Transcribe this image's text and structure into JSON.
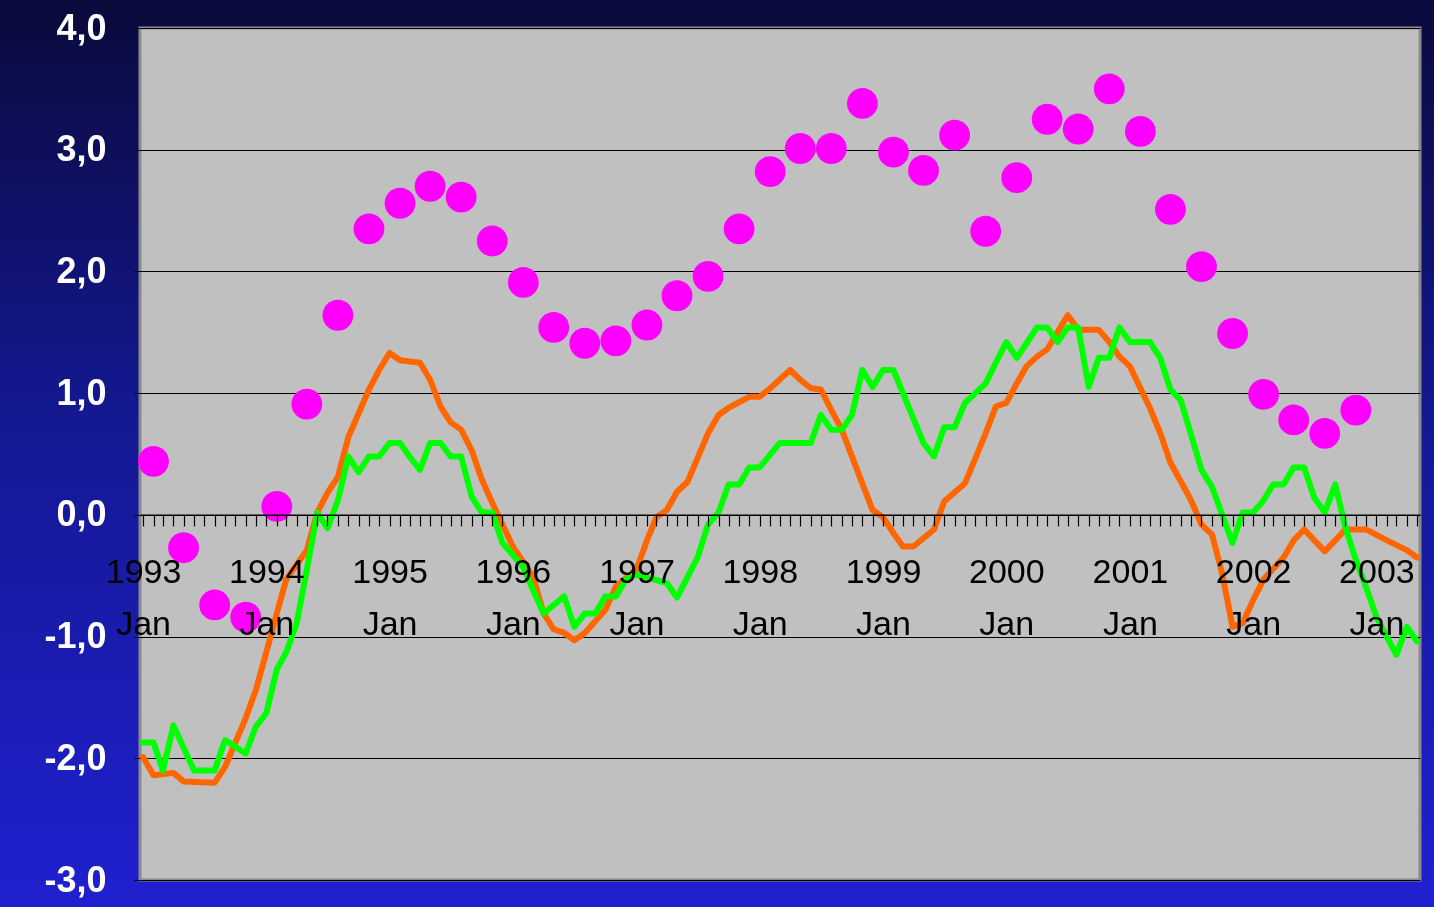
{
  "chart_data": {
    "type": "line",
    "grid": "y",
    "xlim": [
      "1992-12-23",
      "2003-05-10"
    ],
    "ylim": [
      -3,
      4
    ],
    "yticks": [
      {
        "value": -3,
        "label": "-3,0"
      },
      {
        "value": -2,
        "label": "-2,0"
      },
      {
        "value": -1,
        "label": "-1,0"
      },
      {
        "value": 0,
        "label": "0,0"
      },
      {
        "value": 1,
        "label": "1,0"
      },
      {
        "value": 2,
        "label": "2,0"
      },
      {
        "value": 3,
        "label": "3,0"
      },
      {
        "value": 4,
        "label": "4,0"
      }
    ],
    "xticks": [
      {
        "value": "1993-01",
        "label": "1993\nJan"
      },
      {
        "value": "1993-02",
        "label": null
      },
      {
        "value": "1993-03",
        "label": null
      },
      {
        "value": "1993-04",
        "label": null
      },
      {
        "value": "1993-05",
        "label": null
      },
      {
        "value": "1993-06",
        "label": null
      },
      {
        "value": "1993-07",
        "label": null
      },
      {
        "value": "1993-08",
        "label": null
      },
      {
        "value": "1993-09",
        "label": null
      },
      {
        "value": "1993-10",
        "label": null
      },
      {
        "value": "1993-11",
        "label": null
      },
      {
        "value": "1993-12",
        "label": null
      },
      {
        "value": "1994-01",
        "label": "1994\nJan"
      },
      {
        "value": "1994-02",
        "label": null
      },
      {
        "value": "1994-03",
        "label": null
      },
      {
        "value": "1994-04",
        "label": null
      },
      {
        "value": "1994-05",
        "label": null
      },
      {
        "value": "1994-06",
        "label": null
      },
      {
        "value": "1994-07",
        "label": null
      },
      {
        "value": "1994-08",
        "label": null
      },
      {
        "value": "1994-09",
        "label": null
      },
      {
        "value": "1994-10",
        "label": null
      },
      {
        "value": "1994-11",
        "label": null
      },
      {
        "value": "1994-12",
        "label": null
      },
      {
        "value": "1995-01",
        "label": "1995\nJan"
      },
      {
        "value": "1995-02",
        "label": null
      },
      {
        "value": "1995-03",
        "label": null
      },
      {
        "value": "1995-04",
        "label": null
      },
      {
        "value": "1995-05",
        "label": null
      },
      {
        "value": "1995-06",
        "label": null
      },
      {
        "value": "1995-07",
        "label": null
      },
      {
        "value": "1995-08",
        "label": null
      },
      {
        "value": "1995-09",
        "label": null
      },
      {
        "value": "1995-10",
        "label": null
      },
      {
        "value": "1995-11",
        "label": null
      },
      {
        "value": "1995-12",
        "label": null
      },
      {
        "value": "1996-01",
        "label": "1996\nJan"
      },
      {
        "value": "1996-02",
        "label": null
      },
      {
        "value": "1996-03",
        "label": null
      },
      {
        "value": "1996-04",
        "label": null
      },
      {
        "value": "1996-05",
        "label": null
      },
      {
        "value": "1996-06",
        "label": null
      },
      {
        "value": "1996-07",
        "label": null
      },
      {
        "value": "1996-08",
        "label": null
      },
      {
        "value": "1996-09",
        "label": null
      },
      {
        "value": "1996-10",
        "label": null
      },
      {
        "value": "1996-11",
        "label": null
      },
      {
        "value": "1996-12",
        "label": null
      },
      {
        "value": "1997-01",
        "label": "1997\nJan"
      },
      {
        "value": "1997-02",
        "label": null
      },
      {
        "value": "1997-03",
        "label": null
      },
      {
        "value": "1997-04",
        "label": null
      },
      {
        "value": "1997-05",
        "label": null
      },
      {
        "value": "1997-06",
        "label": null
      },
      {
        "value": "1997-07",
        "label": null
      },
      {
        "value": "1997-08",
        "label": null
      },
      {
        "value": "1997-09",
        "label": null
      },
      {
        "value": "1997-10",
        "label": null
      },
      {
        "value": "1997-11",
        "label": null
      },
      {
        "value": "1997-12",
        "label": null
      },
      {
        "value": "1998-01",
        "label": "1998\nJan"
      },
      {
        "value": "1998-02",
        "label": null
      },
      {
        "value": "1998-03",
        "label": null
      },
      {
        "value": "1998-04",
        "label": null
      },
      {
        "value": "1998-05",
        "label": null
      },
      {
        "value": "1998-06",
        "label": null
      },
      {
        "value": "1998-07",
        "label": null
      },
      {
        "value": "1998-08",
        "label": null
      },
      {
        "value": "1998-09",
        "label": null
      },
      {
        "value": "1998-10",
        "label": null
      },
      {
        "value": "1998-11",
        "label": null
      },
      {
        "value": "1998-12",
        "label": null
      },
      {
        "value": "1999-01",
        "label": "1999\nJan"
      },
      {
        "value": "1999-02",
        "label": null
      },
      {
        "value": "1999-03",
        "label": null
      },
      {
        "value": "1999-04",
        "label": null
      },
      {
        "value": "1999-05",
        "label": null
      },
      {
        "value": "1999-06",
        "label": null
      },
      {
        "value": "1999-07",
        "label": null
      },
      {
        "value": "1999-08",
        "label": null
      },
      {
        "value": "1999-09",
        "label": null
      },
      {
        "value": "1999-10",
        "label": null
      },
      {
        "value": "1999-11",
        "label": null
      },
      {
        "value": "1999-12",
        "label": null
      },
      {
        "value": "2000-01",
        "label": "2000\nJan"
      },
      {
        "value": "2000-02",
        "label": null
      },
      {
        "value": "2000-03",
        "label": null
      },
      {
        "value": "2000-04",
        "label": null
      },
      {
        "value": "2000-05",
        "label": null
      },
      {
        "value": "2000-06",
        "label": null
      },
      {
        "value": "2000-07",
        "label": null
      },
      {
        "value": "2000-08",
        "label": null
      },
      {
        "value": "2000-09",
        "label": null
      },
      {
        "value": "2000-10",
        "label": null
      },
      {
        "value": "2000-11",
        "label": null
      },
      {
        "value": "2000-12",
        "label": null
      },
      {
        "value": "2001-01",
        "label": "2001\nJan"
      },
      {
        "value": "2001-02",
        "label": null
      },
      {
        "value": "2001-03",
        "label": null
      },
      {
        "value": "2001-04",
        "label": null
      },
      {
        "value": "2001-05",
        "label": null
      },
      {
        "value": "2001-06",
        "label": null
      },
      {
        "value": "2001-07",
        "label": null
      },
      {
        "value": "2001-08",
        "label": null
      },
      {
        "value": "2001-09",
        "label": null
      },
      {
        "value": "2001-10",
        "label": null
      },
      {
        "value": "2001-11",
        "label": null
      },
      {
        "value": "2001-12",
        "label": null
      },
      {
        "value": "2002-01",
        "label": "2002\nJan"
      },
      {
        "value": "2002-02",
        "label": null
      },
      {
        "value": "2002-03",
        "label": null
      },
      {
        "value": "2002-04",
        "label": null
      },
      {
        "value": "2002-05",
        "label": null
      },
      {
        "value": "2002-06",
        "label": null
      },
      {
        "value": "2002-07",
        "label": null
      },
      {
        "value": "2002-08",
        "label": null
      },
      {
        "value": "2002-09",
        "label": null
      },
      {
        "value": "2002-10",
        "label": null
      },
      {
        "value": "2002-11",
        "label": null
      },
      {
        "value": "2002-12",
        "label": null
      },
      {
        "value": "2003-01",
        "label": "2003\nJan"
      },
      {
        "value": "2003-02",
        "label": null
      },
      {
        "value": "2003-03",
        "label": null
      },
      {
        "value": "2003-04",
        "label": null
      },
      {
        "value": "2003-05",
        "label": null
      }
    ],
    "series": [
      {
        "type": "scatter",
        "color": "#ff00ff",
        "x": [
          "1993-02",
          "1993-05",
          "1993-08",
          "1993-11",
          "1994-02",
          "1994-05",
          "1994-08",
          "1994-11",
          "1995-02",
          "1995-05",
          "1995-08",
          "1995-11",
          "1996-02",
          "1996-05",
          "1996-08",
          "1996-11",
          "1997-02",
          "1997-05",
          "1997-08",
          "1997-11",
          "1998-02",
          "1998-05",
          "1998-08",
          "1998-11",
          "1999-02",
          "1999-05",
          "1999-08",
          "1999-11",
          "2000-02",
          "2000-05",
          "2000-08",
          "2000-11",
          "2001-02",
          "2001-05",
          "2001-08",
          "2001-11",
          "2002-02",
          "2002-05",
          "2002-08",
          "2002-11"
        ],
        "values": [
          0.44,
          -0.27,
          -0.74,
          -0.84,
          0.07,
          0.91,
          1.64,
          2.35,
          2.56,
          2.7,
          2.61,
          2.25,
          1.91,
          1.54,
          1.41,
          1.43,
          1.56,
          1.8,
          1.96,
          2.35,
          2.82,
          3.01,
          3.01,
          3.38,
          2.98,
          2.83,
          3.12,
          2.33,
          2.77,
          3.25,
          3.17,
          3.5,
          3.15,
          2.51,
          2.04,
          1.49,
          0.99,
          0.78,
          0.67,
          0.86
        ]
      },
      {
        "type": "line",
        "color": "#ff6600",
        "x": [
          "1993-01",
          "1993-02",
          "1993-04",
          "1993-05",
          "1993-08",
          "1993-09",
          "1993-11",
          "1993-12",
          "1994-01",
          "1994-02",
          "1994-03",
          "1994-05",
          "1994-06",
          "1994-07",
          "1994-08",
          "1994-09",
          "1994-11",
          "1994-12",
          "1995-01",
          "1995-02",
          "1995-04",
          "1995-05",
          "1995-06",
          "1995-07",
          "1995-08",
          "1995-09",
          "1995-10",
          "1995-11",
          "1996-01",
          "1996-03",
          "1996-04",
          "1996-05",
          "1996-06",
          "1996-07",
          "1996-08",
          "1996-10",
          "1996-11",
          "1997-01",
          "1997-02",
          "1997-03",
          "1997-04",
          "1997-05",
          "1997-06",
          "1997-08",
          "1997-09",
          "1997-10",
          "1997-12",
          "1998-01",
          "1998-02",
          "1998-04",
          "1998-05",
          "1998-06",
          "1998-07",
          "1998-08",
          "1998-09",
          "1998-10",
          "1998-12",
          "1999-01",
          "1999-02",
          "1999-03",
          "1999-04",
          "1999-06",
          "1999-07",
          "1999-09",
          "1999-11",
          "1999-12",
          "2000-01",
          "2000-02",
          "2000-03",
          "2000-04",
          "2000-05",
          "2000-07",
          "2000-08",
          "2000-10",
          "2000-11",
          "2000-12",
          "2001-01",
          "2001-03",
          "2001-04",
          "2001-05",
          "2001-07",
          "2001-08",
          "2001-09",
          "2001-10",
          "2001-11",
          "2001-12",
          "2002-01",
          "2002-02",
          "2002-04",
          "2002-05",
          "2002-06",
          "2002-08",
          "2002-09",
          "2002-10",
          "2002-12",
          "2003-02",
          "2003-04",
          "2003-05"
        ],
        "values": [
          -1.99,
          -2.14,
          -2.12,
          -2.19,
          -2.2,
          -2.07,
          -1.67,
          -1.44,
          -1.13,
          -0.81,
          -0.53,
          -0.29,
          0.02,
          0.18,
          0.31,
          0.64,
          1.03,
          1.19,
          1.33,
          1.27,
          1.25,
          1.11,
          0.89,
          0.76,
          0.7,
          0.53,
          0.29,
          0.1,
          -0.26,
          -0.51,
          -0.81,
          -0.94,
          -0.97,
          -1.03,
          -0.97,
          -0.78,
          -0.59,
          -0.45,
          -0.21,
          -0.02,
          0.04,
          0.19,
          0.27,
          0.67,
          0.82,
          0.88,
          0.97,
          0.97,
          1.04,
          1.19,
          1.11,
          1.04,
          1.03,
          0.86,
          0.7,
          0.48,
          0.04,
          -0.02,
          -0.15,
          -0.26,
          -0.26,
          -0.12,
          0.11,
          0.26,
          0.67,
          0.89,
          0.92,
          1.08,
          1.22,
          1.3,
          1.36,
          1.64,
          1.52,
          1.52,
          1.42,
          1.3,
          1.22,
          0.88,
          0.67,
          0.43,
          0.12,
          -0.08,
          -0.16,
          -0.48,
          -0.92,
          -0.89,
          -0.7,
          -0.53,
          -0.35,
          -0.21,
          -0.12,
          -0.3,
          -0.21,
          -0.12,
          -0.12,
          -0.21,
          -0.29,
          -0.35
        ]
      },
      {
        "type": "line",
        "color": "#00ff00",
        "x": [
          "1993-01",
          "1993-02",
          "1993-03",
          "1993-04",
          "1993-06",
          "1993-08",
          "1993-09",
          "1993-11",
          "1993-12",
          "1994-01",
          "1994-02",
          "1994-03",
          "1994-04",
          "1994-05",
          "1994-06",
          "1994-07",
          "1994-08",
          "1994-09",
          "1994-10",
          "1994-11",
          "1994-12",
          "1995-01",
          "1995-02",
          "1995-03",
          "1995-04",
          "1995-05",
          "1995-06",
          "1995-07",
          "1995-08",
          "1995-09",
          "1995-10",
          "1995-11",
          "1995-12",
          "1996-02",
          "1996-03",
          "1996-04",
          "1996-06",
          "1996-07",
          "1996-08",
          "1996-09",
          "1996-10",
          "1996-11",
          "1996-12",
          "1997-01",
          "1997-04",
          "1997-05",
          "1997-07",
          "1997-08",
          "1997-09",
          "1997-10",
          "1997-11",
          "1997-12",
          "1998-01",
          "1998-03",
          "1998-06",
          "1998-07",
          "1998-08",
          "1998-09",
          "1998-10",
          "1998-11",
          "1998-12",
          "1999-01",
          "1999-02",
          "1999-05",
          "1999-06",
          "1999-07",
          "1999-08",
          "1999-09",
          "1999-11",
          "1999-12",
          "2000-01",
          "2000-02",
          "2000-03",
          "2000-04",
          "2000-05",
          "2000-06",
          "2000-07",
          "2000-08",
          "2000-09",
          "2000-10",
          "2000-11",
          "2000-12",
          "2001-01",
          "2001-03",
          "2001-04",
          "2001-05",
          "2001-06",
          "2001-08",
          "2001-09",
          "2001-11",
          "2001-12",
          "2002-01",
          "2002-02",
          "2002-03",
          "2002-04",
          "2002-05",
          "2002-06",
          "2002-07",
          "2002-08",
          "2002-09",
          "2002-10",
          "2002-11",
          "2002-12",
          "2003-01",
          "2003-03",
          "2003-04",
          "2003-05"
        ],
        "values": [
          -1.87,
          -1.87,
          -2.1,
          -1.73,
          -2.1,
          -2.1,
          -1.85,
          -1.96,
          -1.74,
          -1.63,
          -1.27,
          -1.13,
          -0.89,
          -0.45,
          0.02,
          -0.11,
          0.12,
          0.48,
          0.35,
          0.48,
          0.48,
          0.59,
          0.59,
          0.48,
          0.37,
          0.59,
          0.59,
          0.48,
          0.48,
          0.15,
          0.02,
          0.02,
          -0.23,
          -0.43,
          -0.62,
          -0.81,
          -0.67,
          -0.92,
          -0.81,
          -0.81,
          -0.67,
          -0.67,
          -0.53,
          -0.49,
          -0.56,
          -0.68,
          -0.35,
          -0.08,
          0.02,
          0.25,
          0.25,
          0.39,
          0.39,
          0.59,
          0.59,
          0.82,
          0.7,
          0.7,
          0.82,
          1.19,
          1.05,
          1.19,
          1.19,
          0.59,
          0.48,
          0.72,
          0.72,
          0.92,
          1.08,
          1.25,
          1.42,
          1.29,
          1.41,
          1.54,
          1.54,
          1.42,
          1.54,
          1.54,
          1.05,
          1.29,
          1.29,
          1.54,
          1.42,
          1.42,
          1.29,
          1.03,
          0.94,
          0.37,
          0.23,
          -0.23,
          0.02,
          0.02,
          0.12,
          0.25,
          0.25,
          0.39,
          0.39,
          0.14,
          0.02,
          0.25,
          -0.1,
          -0.37,
          -0.59,
          -0.84,
          -1.15,
          -0.92,
          -1.04
        ]
      }
    ]
  }
}
